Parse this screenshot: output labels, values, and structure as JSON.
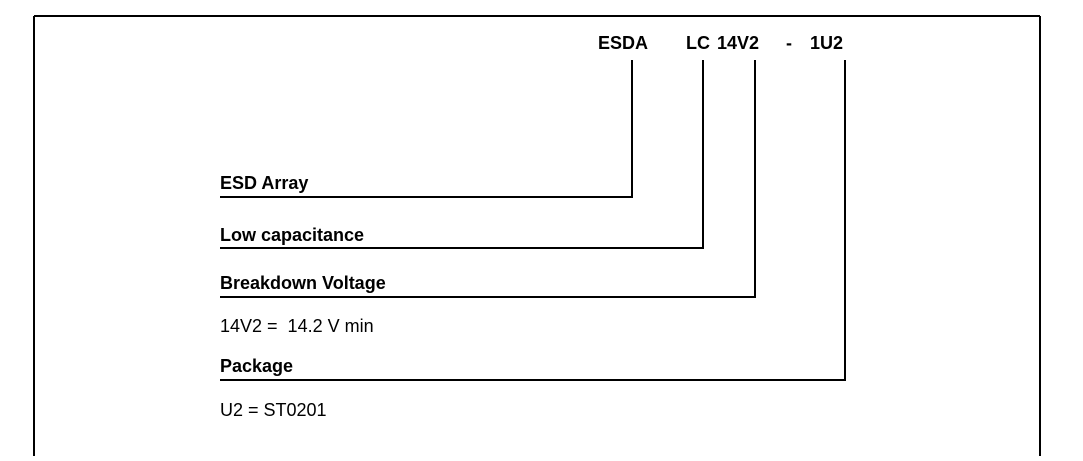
{
  "code": [
    "ESDA",
    "LC",
    "14V2",
    "-",
    "1U2"
  ],
  "fields": [
    {
      "label": "ESD Array"
    },
    {
      "label": "Low capacitance"
    },
    {
      "label": "Breakdown Voltage",
      "description": "14V2 =  14.2 V min"
    },
    {
      "label": "Package",
      "description": "U2 = ST0201"
    }
  ]
}
